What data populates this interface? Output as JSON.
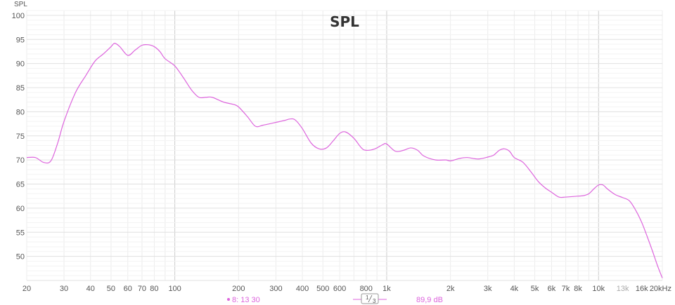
{
  "chart_data": {
    "type": "line",
    "title": "SPL",
    "ylabel": "SPL",
    "xlabel": "",
    "x_scale": "log",
    "xlim": [
      20,
      20000
    ],
    "ylim": [
      45,
      101
    ],
    "grid": true,
    "y_ticks": [
      100,
      95,
      90,
      85,
      80,
      75,
      70,
      65,
      60,
      55,
      50
    ],
    "x_ticks": [
      {
        "value": 20,
        "label": "20"
      },
      {
        "value": 30,
        "label": "30"
      },
      {
        "value": 40,
        "label": "40"
      },
      {
        "value": 50,
        "label": "50"
      },
      {
        "value": 60,
        "label": "60"
      },
      {
        "value": 70,
        "label": "70"
      },
      {
        "value": 80,
        "label": "80"
      },
      {
        "value": 100,
        "label": "100"
      },
      {
        "value": 200,
        "label": "200"
      },
      {
        "value": 300,
        "label": "300"
      },
      {
        "value": 400,
        "label": "400"
      },
      {
        "value": 500,
        "label": "500"
      },
      {
        "value": 600,
        "label": "600"
      },
      {
        "value": 800,
        "label": "800"
      },
      {
        "value": 1000,
        "label": "1k"
      },
      {
        "value": 2000,
        "label": "2k"
      },
      {
        "value": 3000,
        "label": "3k"
      },
      {
        "value": 4000,
        "label": "4k"
      },
      {
        "value": 5000,
        "label": "5k"
      },
      {
        "value": 6000,
        "label": "6k"
      },
      {
        "value": 7000,
        "label": "7k"
      },
      {
        "value": 8000,
        "label": "8k"
      },
      {
        "value": 10000,
        "label": "10k"
      },
      {
        "value": 13000,
        "label": "13k",
        "dim": true
      },
      {
        "value": 16000,
        "label": "16k"
      },
      {
        "value": 20000,
        "label": "20kHz"
      }
    ],
    "series": [
      {
        "color": "#dd66dd",
        "x": [
          20,
          22,
          24,
          26,
          28,
          30,
          34,
          38,
          42,
          46,
          50,
          52,
          55,
          60,
          65,
          70,
          75,
          80,
          85,
          90,
          100,
          110,
          120,
          130,
          140,
          150,
          170,
          190,
          200,
          220,
          240,
          260,
          280,
          300,
          330,
          350,
          370,
          400,
          440,
          480,
          520,
          560,
          600,
          640,
          700,
          760,
          800,
          880,
          960,
          1000,
          1100,
          1200,
          1300,
          1400,
          1500,
          1700,
          1900,
          2000,
          2200,
          2400,
          2700,
          3000,
          3200,
          3400,
          3600,
          3800,
          4000,
          4400,
          4800,
          5200,
          5600,
          6000,
          6500,
          7000,
          8000,
          8500,
          9000,
          9500,
          10000,
          10500,
          11000,
          12000,
          13000,
          14000,
          15000,
          16000,
          17000,
          18000,
          19000,
          20000
        ],
        "y": [
          70.5,
          70.5,
          69.5,
          69.8,
          73.5,
          78,
          84,
          87.5,
          90.5,
          92,
          93.5,
          94.2,
          93.5,
          91.7,
          92.8,
          93.8,
          93.9,
          93.5,
          92.5,
          91,
          89.5,
          87,
          84.5,
          83,
          83,
          83,
          82,
          81.5,
          81,
          79,
          77,
          77.2,
          77.5,
          77.8,
          78.2,
          78.5,
          78.3,
          76.5,
          73.5,
          72.3,
          72.5,
          74,
          75.5,
          75.8,
          74.5,
          72.5,
          72,
          72.3,
          73.2,
          73.3,
          71.8,
          72,
          72.5,
          72,
          70.8,
          70,
          70,
          69.8,
          70.3,
          70.5,
          70.2,
          70.6,
          71,
          72,
          72.3,
          71.8,
          70.5,
          69.5,
          67.5,
          65.5,
          64.2,
          63.3,
          62.3,
          62.3,
          62.5,
          62.6,
          63,
          64,
          64.8,
          64.8,
          64,
          62.8,
          62.2,
          61.5,
          59.5,
          57,
          54,
          51,
          48,
          45.5
        ]
      }
    ]
  },
  "legend": {
    "curve_label": "8: 13 30",
    "smoothing_numerator": "1",
    "smoothing_denominator": "3",
    "reading": "89,9 dB"
  }
}
